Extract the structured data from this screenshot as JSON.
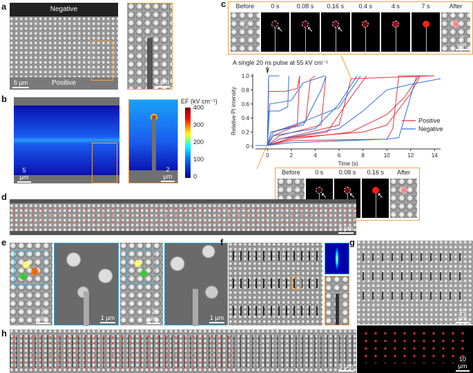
{
  "panels": {
    "a": {
      "label": "a",
      "top_text": "Negative",
      "bottom_text": "Positive",
      "scale_main": "5 µm",
      "scale_inset": "2 µm"
    },
    "b": {
      "label": "b",
      "scale_main": "5 µm",
      "scale_inset": "2 µm",
      "colorbar_title": "EF (kV cm⁻¹)",
      "colorbar_ticks": [
        "400",
        "300",
        "200",
        "100",
        "0"
      ]
    },
    "c": {
      "label": "c",
      "top_frames": [
        "Before",
        "0 s",
        "0.08 s",
        "0.16 s",
        "0.4 s",
        "4 s",
        "7 s",
        "After"
      ],
      "top_scale": "2 µm",
      "bottom_frames": [
        "Before",
        "0 s",
        "0.08 s",
        "0.16 s",
        "After"
      ],
      "annotation": "A single 20 ns pulse at 55 kV cm⁻¹"
    },
    "d": {
      "label": "d",
      "scale": "5 µm"
    },
    "e": {
      "label": "e",
      "scales": [
        "2 µm",
        "1 µm",
        "2 µm",
        "1 µm"
      ]
    },
    "f": {
      "label": "f"
    },
    "g": {
      "label": "g",
      "scale_top": "10 µm",
      "scale_bottom": "10 µm"
    },
    "h": {
      "label": "h",
      "scale": "5 µm"
    }
  },
  "chart_data": {
    "type": "line",
    "xlabel": "Time (s)",
    "ylabel": "Relative PI intensity",
    "xlim": [
      -1,
      14.5
    ],
    "ylim": [
      0,
      1.0
    ],
    "xticks": [
      "0",
      "2",
      "4",
      "6",
      "8",
      "10",
      "12",
      "14"
    ],
    "yticks": [
      "0",
      "0.2",
      "0.4",
      "0.6",
      "0.8",
      "1.0"
    ],
    "legend": {
      "position": "right",
      "entries": [
        "Positive",
        "Negative"
      ]
    },
    "colors": {
      "Positive": "#e8323a",
      "Negative": "#2f6fdc"
    },
    "series": [
      {
        "name": "Positive",
        "points": [
          [
            -1,
            0.01
          ],
          [
            0,
            0.01
          ],
          [
            0.1,
            1
          ],
          [
            0.5,
            1
          ]
        ]
      },
      {
        "name": "Positive",
        "points": [
          [
            0,
            0.01
          ],
          [
            0.1,
            0.78
          ],
          [
            1.5,
            0.78
          ],
          [
            2.5,
            0.82
          ],
          [
            2.7,
            1
          ]
        ]
      },
      {
        "name": "Positive",
        "points": [
          [
            0,
            0.01
          ],
          [
            0.3,
            0.2
          ],
          [
            2.5,
            0.3
          ],
          [
            2.7,
            1
          ]
        ]
      },
      {
        "name": "Positive",
        "points": [
          [
            0,
            0.01
          ],
          [
            0.5,
            0.15
          ],
          [
            3.2,
            0.35
          ],
          [
            3.6,
            0.95
          ],
          [
            4,
            1
          ]
        ]
      },
      {
        "name": "Positive",
        "points": [
          [
            0,
            0.01
          ],
          [
            1,
            0.15
          ],
          [
            4.5,
            0.3
          ],
          [
            4.9,
            1
          ]
        ]
      },
      {
        "name": "Positive",
        "points": [
          [
            0,
            0.01
          ],
          [
            1,
            0.1
          ],
          [
            5,
            0.2
          ],
          [
            7,
            0.7
          ],
          [
            8.3,
            1
          ]
        ]
      },
      {
        "name": "Positive",
        "points": [
          [
            0,
            0.01
          ],
          [
            2,
            0.1
          ],
          [
            7,
            0.2
          ],
          [
            10,
            0.45
          ],
          [
            11.5,
            0.7
          ],
          [
            12.7,
            1
          ]
        ]
      },
      {
        "name": "Positive",
        "points": [
          [
            0,
            0.01
          ],
          [
            2,
            0.08
          ],
          [
            10,
            0.1
          ],
          [
            10.5,
            0.25
          ],
          [
            11,
            1
          ],
          [
            14,
            1
          ]
        ]
      },
      {
        "name": "Positive",
        "points": [
          [
            0,
            0.01
          ],
          [
            2,
            0.12
          ],
          [
            8,
            0.2
          ],
          [
            10,
            0.3
          ],
          [
            12,
            0.75
          ],
          [
            12.8,
            1
          ]
        ]
      },
      {
        "name": "Positive",
        "points": [
          [
            0,
            0.01
          ],
          [
            1,
            0.1
          ],
          [
            6,
            0.3
          ],
          [
            7,
            0.96
          ],
          [
            14,
            1
          ]
        ]
      },
      {
        "name": "Negative",
        "points": [
          [
            -1,
            0.01
          ],
          [
            0,
            0.01
          ],
          [
            0.1,
            1
          ],
          [
            1,
            1
          ]
        ]
      },
      {
        "name": "Negative",
        "points": [
          [
            0,
            0.01
          ],
          [
            0.1,
            0.5
          ],
          [
            1,
            0.5
          ],
          [
            1.7,
            0.56
          ],
          [
            1.8,
            1
          ]
        ]
      },
      {
        "name": "Negative",
        "points": [
          [
            0,
            0.01
          ],
          [
            0.2,
            0.6
          ],
          [
            2,
            0.65
          ],
          [
            3,
            0.9
          ],
          [
            4.8,
            1
          ]
        ]
      },
      {
        "name": "Negative",
        "points": [
          [
            0,
            0.01
          ],
          [
            0.3,
            0.2
          ],
          [
            3,
            0.3
          ],
          [
            4.5,
            0.8
          ],
          [
            4.9,
            1
          ]
        ]
      },
      {
        "name": "Negative",
        "points": [
          [
            0,
            0.01
          ],
          [
            0.5,
            0.15
          ],
          [
            4,
            0.25
          ],
          [
            6,
            0.6
          ],
          [
            7.5,
            1
          ]
        ]
      },
      {
        "name": "Negative",
        "points": [
          [
            0,
            0.01
          ],
          [
            1,
            0.1
          ],
          [
            6,
            0.25
          ],
          [
            8,
            0.5
          ],
          [
            10,
            0.8
          ],
          [
            12,
            0.88
          ],
          [
            14.5,
            0.96
          ]
        ]
      },
      {
        "name": "Negative",
        "points": [
          [
            0,
            0.01
          ],
          [
            2,
            0.05
          ],
          [
            10,
            0.1
          ],
          [
            11,
            0.12
          ],
          [
            12.5,
            1
          ]
        ]
      },
      {
        "name": "Negative",
        "points": [
          [
            0,
            0.01
          ],
          [
            0.5,
            0.2
          ],
          [
            3,
            0.35
          ],
          [
            6,
            0.55
          ],
          [
            7.8,
            1
          ]
        ]
      }
    ]
  }
}
